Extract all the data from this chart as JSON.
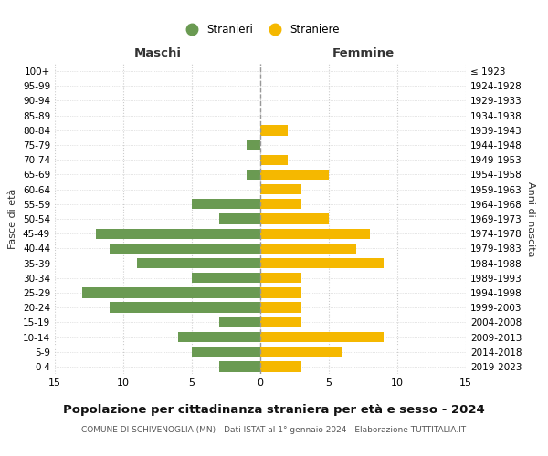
{
  "age_groups": [
    "100+",
    "95-99",
    "90-94",
    "85-89",
    "80-84",
    "75-79",
    "70-74",
    "65-69",
    "60-64",
    "55-59",
    "50-54",
    "45-49",
    "40-44",
    "35-39",
    "30-34",
    "25-29",
    "20-24",
    "15-19",
    "10-14",
    "5-9",
    "0-4"
  ],
  "birth_years": [
    "≤ 1923",
    "1924-1928",
    "1929-1933",
    "1934-1938",
    "1939-1943",
    "1944-1948",
    "1949-1953",
    "1954-1958",
    "1959-1963",
    "1964-1968",
    "1969-1973",
    "1974-1978",
    "1979-1983",
    "1984-1988",
    "1989-1993",
    "1994-1998",
    "1999-2003",
    "2004-2008",
    "2009-2013",
    "2014-2018",
    "2019-2023"
  ],
  "males": [
    0,
    0,
    0,
    0,
    0,
    1,
    0,
    1,
    0,
    5,
    3,
    12,
    11,
    9,
    5,
    13,
    11,
    3,
    6,
    5,
    3
  ],
  "females": [
    0,
    0,
    0,
    0,
    2,
    0,
    2,
    5,
    3,
    3,
    5,
    8,
    7,
    9,
    3,
    3,
    3,
    3,
    9,
    6,
    3
  ],
  "male_color": "#6a9a52",
  "female_color": "#f5b800",
  "title": "Popolazione per cittadinanza straniera per età e sesso - 2024",
  "subtitle": "COMUNE DI SCHIVENOGLIA (MN) - Dati ISTAT al 1° gennaio 2024 - Elaborazione TUTTITALIA.IT",
  "xlabel_left": "Maschi",
  "xlabel_right": "Femmine",
  "ylabel_left": "Fasce di età",
  "ylabel_right": "Anni di nascita",
  "legend_male": "Stranieri",
  "legend_female": "Straniere",
  "xlim": 15,
  "background_color": "#ffffff",
  "grid_color": "#cccccc"
}
